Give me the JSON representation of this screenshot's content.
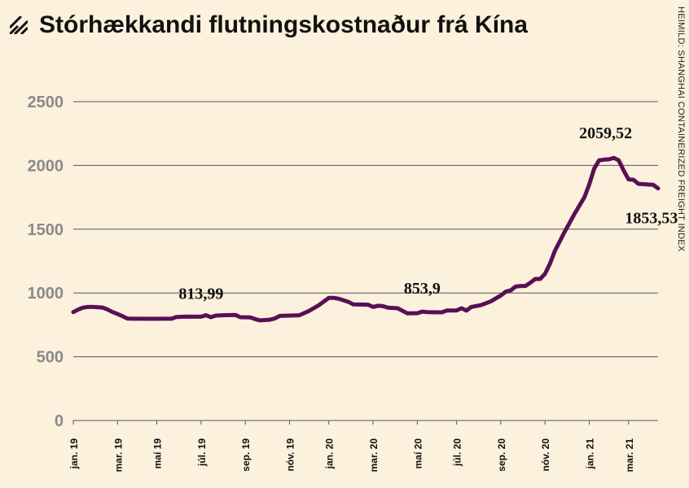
{
  "title": "Stórhækkandi flutningskostnaður frá Kína",
  "source": "HEIMILD: SHANGHAI CONTAINERIZED FREIGHT INDEX",
  "colors": {
    "background": "#fbf1dc",
    "line": "#5a0f55",
    "grid": "#555555",
    "ticks": "#8a8a8a"
  },
  "chart_data": {
    "type": "line",
    "title": "Stórhækkandi flutningskostnaður frá Kína",
    "xlabel": "",
    "ylabel": "",
    "ylim": [
      0,
      2500
    ],
    "yticks": [
      0,
      500,
      1000,
      1500,
      2000,
      2500
    ],
    "grid": true,
    "x_tick_labels": [
      {
        "label": "jan. 19",
        "week": 0
      },
      {
        "label": "mar. 19",
        "week": 9
      },
      {
        "label": "maí 19",
        "week": 17
      },
      {
        "label": "júl. 19",
        "week": 26
      },
      {
        "label": "sep. 19",
        "week": 35
      },
      {
        "label": "nóv. 19",
        "week": 44
      },
      {
        "label": "jan. 20",
        "week": 52
      },
      {
        "label": "mar. 20",
        "week": 61
      },
      {
        "label": "maí 20",
        "week": 70
      },
      {
        "label": "júl. 20",
        "week": 78
      },
      {
        "label": "sep. 20",
        "week": 87
      },
      {
        "label": "nóv. 20",
        "week": 96
      },
      {
        "label": "jan. 21",
        "week": 105
      },
      {
        "label": "mar. 21",
        "week": 113
      }
    ],
    "series": [
      {
        "points": [
          [
            0,
            850
          ],
          [
            1,
            870
          ],
          [
            2,
            885
          ],
          [
            3,
            890
          ],
          [
            4,
            890
          ],
          [
            5,
            888
          ],
          [
            6,
            885
          ],
          [
            7,
            870
          ],
          [
            8,
            850
          ],
          [
            9,
            835
          ],
          [
            10,
            818
          ],
          [
            11,
            800
          ],
          [
            12,
            798
          ],
          [
            14,
            798
          ],
          [
            16,
            797
          ],
          [
            18,
            798
          ],
          [
            20,
            798
          ],
          [
            21,
            812
          ],
          [
            23,
            815
          ],
          [
            25,
            813.99
          ],
          [
            26,
            814
          ],
          [
            27,
            826
          ],
          [
            28,
            810
          ],
          [
            29,
            823
          ],
          [
            31,
            826
          ],
          [
            33,
            828
          ],
          [
            34,
            810
          ],
          [
            36,
            808
          ],
          [
            37,
            795
          ],
          [
            38,
            785
          ],
          [
            40,
            790
          ],
          [
            41,
            800
          ],
          [
            42,
            820
          ],
          [
            44,
            823
          ],
          [
            46,
            825
          ],
          [
            48,
            860
          ],
          [
            50,
            905
          ],
          [
            52,
            962
          ],
          [
            53,
            962
          ],
          [
            54,
            955
          ],
          [
            56,
            930
          ],
          [
            57,
            910
          ],
          [
            60,
            908
          ],
          [
            61,
            890
          ],
          [
            62,
            900
          ],
          [
            63,
            897
          ],
          [
            64,
            885
          ],
          [
            66,
            880
          ],
          [
            67,
            860
          ],
          [
            68,
            840
          ],
          [
            70,
            841
          ],
          [
            71,
            853.9
          ],
          [
            72,
            850
          ],
          [
            74,
            848
          ],
          [
            75,
            848
          ],
          [
            76,
            862
          ],
          [
            78,
            863
          ],
          [
            79,
            880
          ],
          [
            80,
            862
          ],
          [
            81,
            890
          ],
          [
            83,
            905
          ],
          [
            85,
            935
          ],
          [
            87,
            980
          ],
          [
            88,
            1010
          ],
          [
            89,
            1020
          ],
          [
            90,
            1050
          ],
          [
            91,
            1055
          ],
          [
            92,
            1055
          ],
          [
            93,
            1080
          ],
          [
            94,
            1110
          ],
          [
            95,
            1110
          ],
          [
            96,
            1150
          ],
          [
            97,
            1230
          ],
          [
            98,
            1330
          ],
          [
            100,
            1480
          ],
          [
            102,
            1620
          ],
          [
            104,
            1750
          ],
          [
            105,
            1850
          ],
          [
            106,
            1975
          ],
          [
            107,
            2040
          ],
          [
            108,
            2045
          ],
          [
            109,
            2048
          ],
          [
            110,
            2059.52
          ],
          [
            111,
            2040
          ],
          [
            112,
            1960
          ],
          [
            113,
            1890
          ],
          [
            114,
            1888
          ],
          [
            115,
            1855
          ],
          [
            116,
            1853.53
          ],
          [
            117,
            1850
          ],
          [
            118,
            1848
          ],
          [
            119,
            1820
          ]
        ]
      }
    ],
    "annotations": [
      {
        "text": "813,99",
        "week": 26,
        "value": 813.99
      },
      {
        "text": "853,9",
        "week": 71,
        "value": 853.9
      },
      {
        "text": "2059,52",
        "week": 109,
        "value": 2059.52
      },
      {
        "text": "1853,53",
        "week": 116,
        "value": 1853.53
      }
    ]
  }
}
